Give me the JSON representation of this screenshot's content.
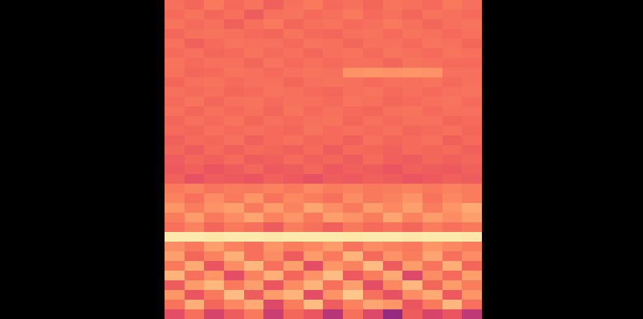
{
  "chart_data": {
    "type": "heatmap",
    "color": "magma",
    "color_range": [
      0,
      1
    ],
    "tick_labels": false,
    "cells": [
      [
        0.7,
        0.68,
        0.72,
        0.69,
        0.71,
        0.67,
        0.7,
        0.72,
        0.69,
        0.7,
        0.68,
        0.71,
        0.7,
        0.69,
        0.72,
        0.7
      ],
      [
        0.69,
        0.71,
        0.68,
        0.7,
        0.66,
        0.7,
        0.71,
        0.69,
        0.7,
        0.72,
        0.69,
        0.7,
        0.68,
        0.71,
        0.7,
        0.69
      ],
      [
        0.71,
        0.69,
        0.7,
        0.67,
        0.7,
        0.72,
        0.68,
        0.7,
        0.71,
        0.69,
        0.7,
        0.72,
        0.7,
        0.68,
        0.7,
        0.71
      ],
      [
        0.68,
        0.7,
        0.71,
        0.7,
        0.69,
        0.68,
        0.71,
        0.69,
        0.68,
        0.7,
        0.71,
        0.69,
        0.71,
        0.7,
        0.69,
        0.7
      ],
      [
        0.7,
        0.67,
        0.69,
        0.71,
        0.7,
        0.7,
        0.69,
        0.71,
        0.7,
        0.68,
        0.7,
        0.7,
        0.69,
        0.71,
        0.7,
        0.68
      ],
      [
        0.69,
        0.7,
        0.68,
        0.69,
        0.71,
        0.69,
        0.7,
        0.68,
        0.7,
        0.71,
        0.69,
        0.71,
        0.7,
        0.69,
        0.71,
        0.7
      ],
      [
        0.71,
        0.69,
        0.7,
        0.7,
        0.68,
        0.71,
        0.69,
        0.7,
        0.69,
        0.7,
        0.7,
        0.68,
        0.71,
        0.7,
        0.69,
        0.69
      ],
      [
        0.7,
        0.68,
        0.69,
        0.71,
        0.7,
        0.69,
        0.7,
        0.71,
        0.7,
        0.77,
        0.78,
        0.77,
        0.78,
        0.77,
        0.7,
        0.7
      ],
      [
        0.68,
        0.7,
        0.71,
        0.69,
        0.7,
        0.7,
        0.68,
        0.7,
        0.71,
        0.7,
        0.69,
        0.7,
        0.7,
        0.71,
        0.69,
        0.7
      ],
      [
        0.7,
        0.69,
        0.7,
        0.68,
        0.69,
        0.71,
        0.7,
        0.69,
        0.68,
        0.7,
        0.71,
        0.69,
        0.7,
        0.69,
        0.7,
        0.71
      ],
      [
        0.69,
        0.71,
        0.68,
        0.7,
        0.71,
        0.69,
        0.7,
        0.7,
        0.69,
        0.71,
        0.7,
        0.68,
        0.69,
        0.7,
        0.71,
        0.69
      ],
      [
        0.7,
        0.68,
        0.7,
        0.69,
        0.7,
        0.68,
        0.71,
        0.69,
        0.7,
        0.69,
        0.68,
        0.7,
        0.71,
        0.69,
        0.7,
        0.7
      ],
      [
        0.68,
        0.7,
        0.69,
        0.71,
        0.68,
        0.7,
        0.69,
        0.7,
        0.71,
        0.68,
        0.7,
        0.69,
        0.7,
        0.7,
        0.68,
        0.69
      ],
      [
        0.69,
        0.68,
        0.7,
        0.69,
        0.7,
        0.69,
        0.68,
        0.71,
        0.69,
        0.7,
        0.69,
        0.7,
        0.68,
        0.69,
        0.7,
        0.68
      ],
      [
        0.67,
        0.69,
        0.68,
        0.7,
        0.67,
        0.69,
        0.7,
        0.68,
        0.69,
        0.67,
        0.7,
        0.68,
        0.69,
        0.7,
        0.67,
        0.69
      ],
      [
        0.68,
        0.66,
        0.69,
        0.67,
        0.69,
        0.68,
        0.67,
        0.69,
        0.66,
        0.69,
        0.68,
        0.67,
        0.69,
        0.68,
        0.69,
        0.67
      ],
      [
        0.66,
        0.68,
        0.67,
        0.69,
        0.66,
        0.67,
        0.69,
        0.67,
        0.68,
        0.66,
        0.69,
        0.67,
        0.66,
        0.68,
        0.67,
        0.68
      ],
      [
        0.65,
        0.67,
        0.64,
        0.66,
        0.68,
        0.65,
        0.66,
        0.68,
        0.65,
        0.67,
        0.66,
        0.64,
        0.67,
        0.66,
        0.65,
        0.67
      ],
      [
        0.67,
        0.63,
        0.66,
        0.65,
        0.64,
        0.67,
        0.65,
        0.63,
        0.66,
        0.65,
        0.67,
        0.66,
        0.64,
        0.65,
        0.67,
        0.66
      ],
      [
        0.72,
        0.74,
        0.71,
        0.73,
        0.72,
        0.74,
        0.72,
        0.75,
        0.73,
        0.74,
        0.72,
        0.73,
        0.74,
        0.72,
        0.74,
        0.73
      ],
      [
        0.74,
        0.7,
        0.76,
        0.72,
        0.78,
        0.71,
        0.75,
        0.73,
        0.7,
        0.76,
        0.72,
        0.74,
        0.77,
        0.71,
        0.75,
        0.73
      ],
      [
        0.78,
        0.73,
        0.77,
        0.8,
        0.72,
        0.79,
        0.74,
        0.81,
        0.76,
        0.72,
        0.79,
        0.75,
        0.8,
        0.73,
        0.78,
        0.82
      ],
      [
        0.73,
        0.79,
        0.72,
        0.76,
        0.81,
        0.74,
        0.78,
        0.72,
        0.8,
        0.77,
        0.73,
        0.81,
        0.74,
        0.79,
        0.76,
        0.8
      ],
      [
        0.7,
        0.74,
        0.68,
        0.72,
        0.7,
        0.66,
        0.73,
        0.7,
        0.67,
        0.72,
        0.69,
        0.71,
        0.68,
        0.73,
        0.7,
        0.72
      ],
      [
        0.96,
        0.96,
        0.95,
        0.96,
        0.96,
        0.95,
        0.96,
        0.96,
        0.96,
        0.95,
        0.96,
        0.96,
        0.95,
        0.96,
        0.96,
        0.95
      ],
      [
        0.76,
        0.72,
        0.8,
        0.74,
        0.7,
        0.78,
        0.73,
        0.75,
        0.79,
        0.71,
        0.76,
        0.74,
        0.72,
        0.78,
        0.75,
        0.73
      ],
      [
        0.8,
        0.68,
        0.74,
        0.83,
        0.7,
        0.76,
        0.66,
        0.79,
        0.72,
        0.84,
        0.69,
        0.77,
        0.73,
        0.81,
        0.7,
        0.76
      ],
      [
        0.72,
        0.82,
        0.64,
        0.76,
        0.85,
        0.7,
        0.8,
        0.62,
        0.78,
        0.74,
        0.86,
        0.66,
        0.79,
        0.71,
        0.83,
        0.68
      ],
      [
        0.84,
        0.7,
        0.78,
        0.62,
        0.74,
        0.83,
        0.68,
        0.77,
        0.86,
        0.65,
        0.73,
        0.82,
        0.6,
        0.76,
        0.69,
        0.8
      ],
      [
        0.66,
        0.79,
        0.85,
        0.72,
        0.8,
        0.64,
        0.76,
        0.84,
        0.7,
        0.8,
        0.62,
        0.75,
        0.85,
        0.68,
        0.79,
        0.73
      ],
      [
        0.78,
        0.64,
        0.72,
        0.86,
        0.66,
        0.79,
        0.84,
        0.62,
        0.77,
        0.88,
        0.7,
        0.63,
        0.76,
        0.82,
        0.65,
        0.78
      ],
      [
        0.71,
        0.83,
        0.68,
        0.75,
        0.82,
        0.6,
        0.73,
        0.86,
        0.66,
        0.74,
        0.81,
        0.78,
        0.64,
        0.72,
        0.85,
        0.7
      ],
      [
        0.62,
        0.7,
        0.58,
        0.66,
        0.72,
        0.55,
        0.68,
        0.64,
        0.5,
        0.7,
        0.6,
        0.42,
        0.66,
        0.58,
        0.64,
        0.52
      ]
    ]
  }
}
